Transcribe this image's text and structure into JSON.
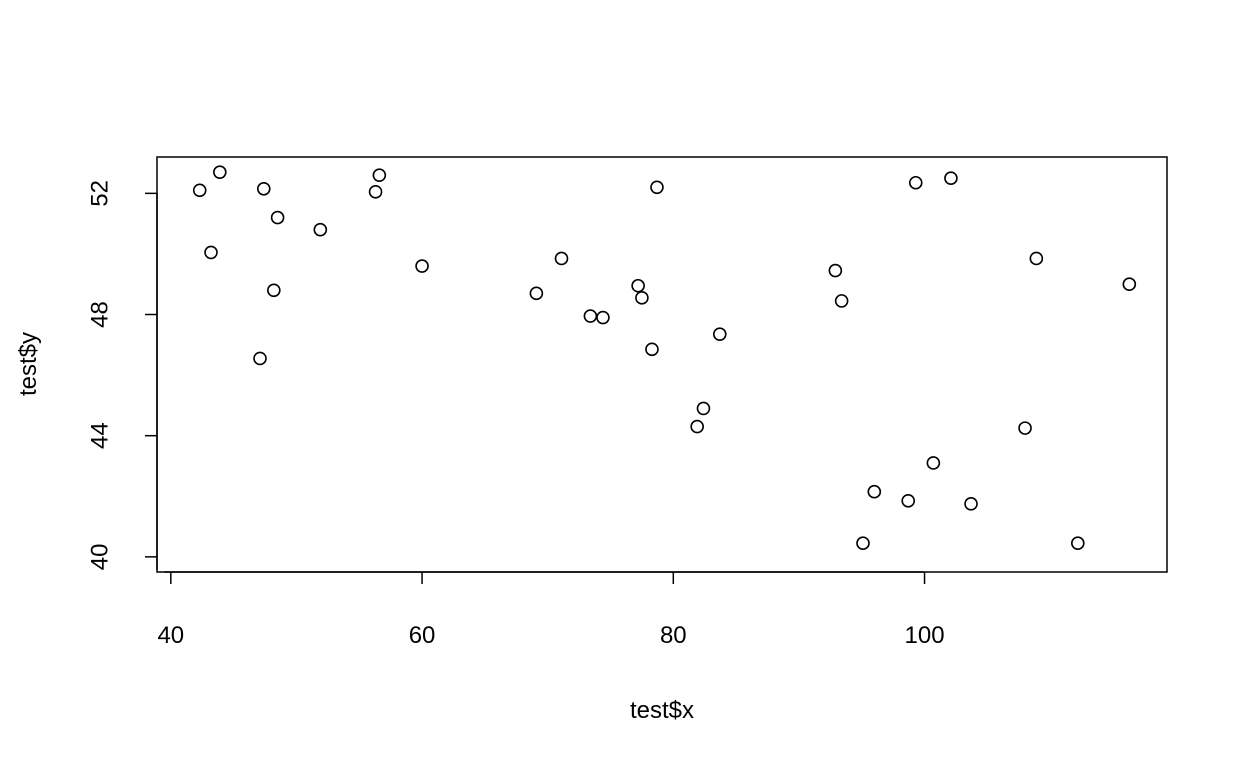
{
  "chart_data": {
    "type": "scatter",
    "title": "",
    "xlabel": "test$x",
    "ylabel": "test$y",
    "xlim": [
      38.9,
      119.3
    ],
    "ylim": [
      39.5,
      53.2
    ],
    "xticks": [
      40,
      60,
      80,
      100
    ],
    "yticks": [
      40,
      44,
      48,
      52
    ],
    "grid": false,
    "legend": "none",
    "marker": "open-circle",
    "colors": {
      "point": "#000000",
      "axis": "#000000",
      "background": "#ffffff"
    },
    "x": [
      42.3,
      43.9,
      47.4,
      48.5,
      56.3,
      56.6,
      78.7,
      99.3,
      102.1,
      43.2,
      51.9,
      60.0,
      71.1,
      77.2,
      77.5,
      69.1,
      48.2,
      73.4,
      74.4,
      92.9,
      93.4,
      108.9,
      116.3,
      47.1,
      78.3,
      83.7,
      82.4,
      81.9,
      108.0,
      100.7,
      96.0,
      98.7,
      103.7,
      95.1,
      112.2
    ],
    "y": [
      52.1,
      52.7,
      52.15,
      51.2,
      52.05,
      52.6,
      52.2,
      52.35,
      52.5,
      50.05,
      50.8,
      49.6,
      49.85,
      48.95,
      48.55,
      48.7,
      48.8,
      47.95,
      47.9,
      49.45,
      48.45,
      49.85,
      49.0,
      46.55,
      46.85,
      47.35,
      44.9,
      44.3,
      44.25,
      43.1,
      42.15,
      41.85,
      41.75,
      40.45,
      40.45
    ]
  }
}
